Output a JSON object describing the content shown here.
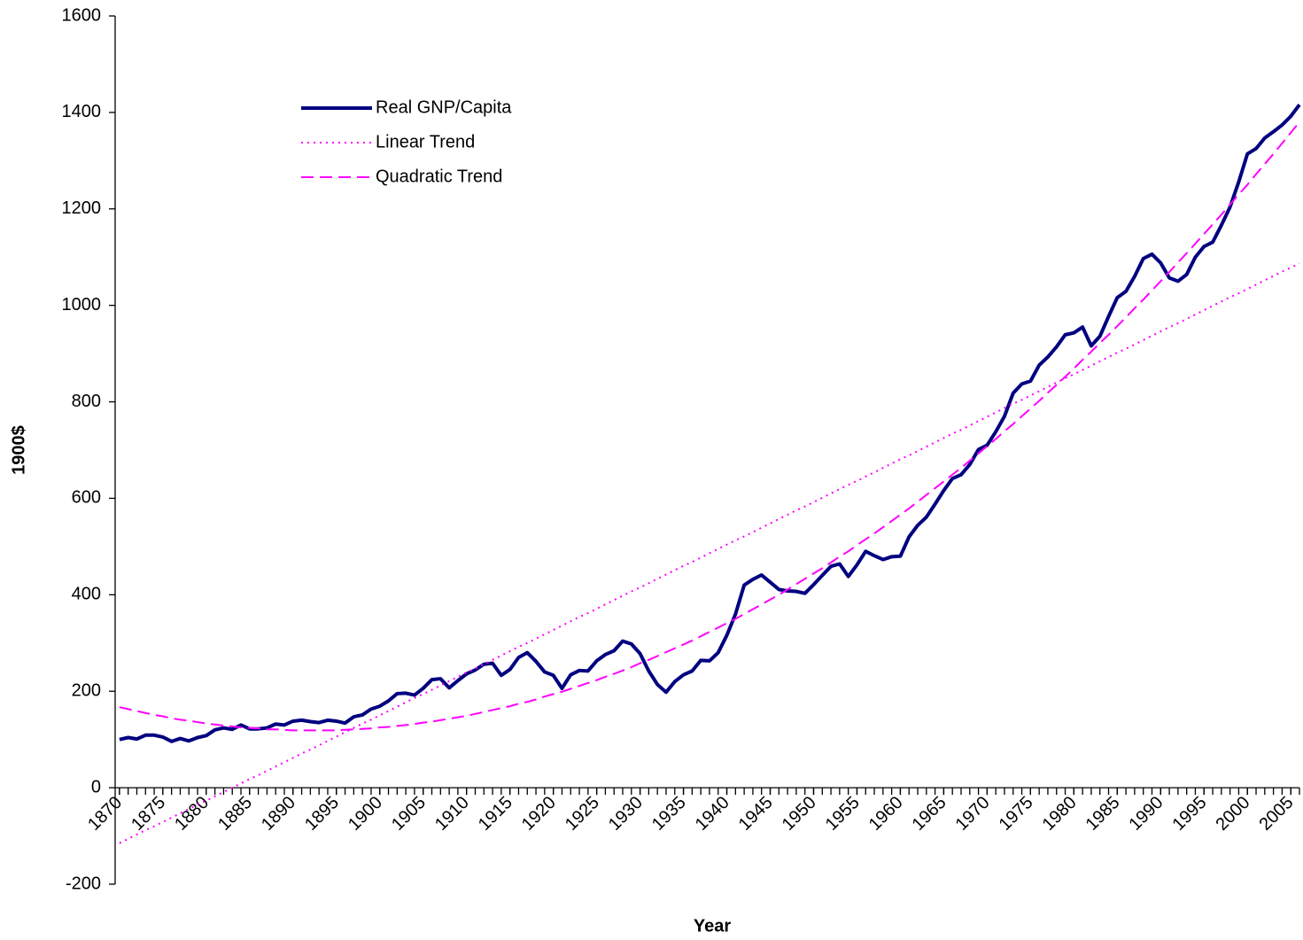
{
  "chart_data": {
    "type": "line",
    "xlabel": "Year",
    "ylabel": "1900$",
    "x": [
      1870,
      1871,
      1872,
      1873,
      1874,
      1875,
      1876,
      1877,
      1878,
      1879,
      1880,
      1881,
      1882,
      1883,
      1884,
      1885,
      1886,
      1887,
      1888,
      1889,
      1890,
      1891,
      1892,
      1893,
      1894,
      1895,
      1896,
      1897,
      1898,
      1899,
      1900,
      1901,
      1902,
      1903,
      1904,
      1905,
      1906,
      1907,
      1908,
      1909,
      1910,
      1911,
      1912,
      1913,
      1914,
      1915,
      1916,
      1917,
      1918,
      1919,
      1920,
      1921,
      1922,
      1923,
      1924,
      1925,
      1926,
      1927,
      1928,
      1929,
      1930,
      1931,
      1932,
      1933,
      1934,
      1935,
      1936,
      1937,
      1938,
      1939,
      1940,
      1941,
      1942,
      1943,
      1944,
      1945,
      1946,
      1947,
      1948,
      1949,
      1950,
      1951,
      1952,
      1953,
      1954,
      1955,
      1956,
      1957,
      1958,
      1959,
      1960,
      1961,
      1962,
      1963,
      1964,
      1965,
      1966,
      1967,
      1968,
      1969,
      1970,
      1971,
      1972,
      1973,
      1974,
      1975,
      1976,
      1977,
      1978,
      1979,
      1980,
      1981,
      1982,
      1983,
      1984,
      1985,
      1986,
      1987,
      1988,
      1989,
      1990,
      1991,
      1992,
      1993,
      1994,
      1995,
      1996,
      1997,
      1998,
      1999,
      2000,
      2001,
      2002,
      2003,
      2004,
      2005,
      2006
    ],
    "series": [
      {
        "name": "Real GNP/Capita",
        "color": "#000080",
        "style": "solid",
        "values": [
          100,
          104,
          101,
          109,
          109,
          105,
          96,
          102,
          97,
          104,
          108,
          120,
          124,
          121,
          130,
          122,
          122,
          124,
          132,
          130,
          138,
          140,
          137,
          135,
          140,
          138,
          134,
          147,
          151,
          163,
          169,
          180,
          195,
          196,
          192,
          206,
          224,
          226,
          207,
          222,
          236,
          244,
          256,
          258,
          233,
          245,
          270,
          280,
          262,
          240,
          233,
          206,
          234,
          243,
          242,
          263,
          276,
          284,
          304,
          298,
          278,
          242,
          214,
          198,
          220,
          234,
          242,
          264,
          263,
          280,
          316,
          360,
          420,
          432,
          441,
          426,
          411,
          408,
          407,
          403,
          421,
          440,
          459,
          464,
          438,
          462,
          490,
          481,
          473,
          479,
          480,
          520,
          544,
          561,
          588,
          616,
          641,
          649,
          670,
          701,
          710,
          738,
          770,
          818,
          837,
          843,
          876,
          893,
          914,
          939,
          943,
          955,
          916,
          936,
          977,
          1016,
          1029,
          1060,
          1097,
          1106,
          1088,
          1057,
          1050,
          1064,
          1100,
          1122,
          1131,
          1166,
          1204,
          1256,
          1314,
          1325,
          1347,
          1360,
          1374,
          1392,
          1416
        ]
      },
      {
        "name": "Linear Trend",
        "color": "#ff00ff",
        "style": "dotted",
        "values": [
          -115,
          -106,
          -97,
          -88,
          -80,
          -71,
          -62,
          -53,
          -44,
          -35,
          -27,
          -18,
          -9,
          0,
          9,
          18,
          26,
          35,
          44,
          53,
          62,
          71,
          79,
          88,
          97,
          106,
          115,
          124,
          133,
          141,
          150,
          159,
          168,
          177,
          186,
          194,
          203,
          212,
          221,
          230,
          239,
          247,
          256,
          265,
          274,
          283,
          292,
          300,
          309,
          318,
          327,
          336,
          345,
          354,
          362,
          371,
          380,
          389,
          398,
          407,
          415,
          424,
          433,
          442,
          451,
          460,
          468,
          477,
          486,
          495,
          504,
          513,
          521,
          530,
          539,
          548,
          557,
          566,
          575,
          583,
          592,
          601,
          610,
          619,
          628,
          636,
          645,
          654,
          663,
          672,
          681,
          689,
          698,
          707,
          716,
          725,
          734,
          742,
          751,
          760,
          769,
          778,
          787,
          796,
          804,
          813,
          822,
          831,
          840,
          849,
          857,
          866,
          875,
          884,
          893,
          902,
          910,
          919,
          928,
          937,
          946,
          955,
          963,
          972,
          981,
          990,
          999,
          1008,
          1017,
          1025,
          1034,
          1043,
          1052,
          1061,
          1070,
          1078,
          1087
        ]
      },
      {
        "name": "Quadratic Trend",
        "color": "#ff00ff",
        "style": "dashed",
        "values": [
          167,
          163,
          159,
          155,
          151,
          148,
          144,
          141,
          139,
          136,
          133,
          131,
          129,
          127,
          125,
          124,
          123,
          121,
          121,
          120,
          119,
          119,
          119,
          119,
          119,
          119,
          120,
          121,
          122,
          123,
          125,
          126,
          128,
          130,
          132,
          135,
          137,
          140,
          143,
          146,
          149,
          153,
          157,
          161,
          165,
          169,
          174,
          178,
          183,
          189,
          194,
          199,
          205,
          211,
          217,
          223,
          230,
          236,
          243,
          250,
          258,
          265,
          273,
          281,
          289,
          297,
          305,
          314,
          323,
          332,
          341,
          350,
          360,
          370,
          380,
          390,
          400,
          411,
          422,
          433,
          444,
          455,
          467,
          479,
          490,
          503,
          515,
          527,
          540,
          553,
          566,
          579,
          593,
          607,
          621,
          635,
          649,
          663,
          678,
          693,
          708,
          723,
          739,
          754,
          770,
          786,
          802,
          819,
          835,
          852,
          869,
          887,
          904,
          922,
          939,
          957,
          975,
          994,
          1012,
          1031,
          1050,
          1069,
          1089,
          1108,
          1128,
          1148,
          1168,
          1188,
          1209,
          1230,
          1250,
          1272,
          1293,
          1314,
          1336,
          1358,
          1380
        ]
      }
    ],
    "xlim": [
      1869.5,
      2006
    ],
    "xticks": [
      1870,
      1875,
      1880,
      1885,
      1890,
      1895,
      1900,
      1905,
      1910,
      1915,
      1920,
      1925,
      1930,
      1935,
      1940,
      1945,
      1950,
      1955,
      1960,
      1965,
      1970,
      1975,
      1980,
      1985,
      1990,
      1995,
      2000,
      2005
    ],
    "ylim": [
      -200,
      1600
    ],
    "yticks": [
      -200,
      0,
      200,
      400,
      600,
      800,
      1000,
      1200,
      1400,
      1600
    ],
    "grid": false,
    "legend": "upper left"
  }
}
